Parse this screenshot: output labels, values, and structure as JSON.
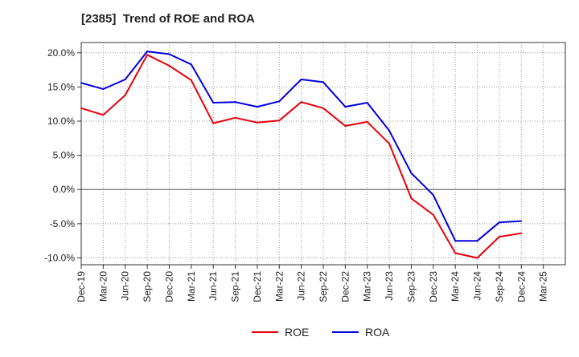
{
  "chart_data": {
    "type": "line",
    "title": "[2385]  Trend of ROE and ROA",
    "xlabel": "",
    "ylabel": "",
    "categories": [
      "Dec-19",
      "Mar-20",
      "Jun-20",
      "Sep-20",
      "Dec-20",
      "Mar-21",
      "Jun-21",
      "Sep-21",
      "Dec-21",
      "Mar-22",
      "Jun-22",
      "Sep-22",
      "Dec-22",
      "Mar-23",
      "Jun-23",
      "Sep-23",
      "Dec-23",
      "Mar-24",
      "Jun-24",
      "Sep-24",
      "Dec-24",
      "Mar-25"
    ],
    "ylim": [
      -11,
      21.5
    ],
    "yticks": [
      -10,
      -5,
      0,
      5,
      10,
      15,
      20
    ],
    "ytick_labels": [
      "-10.0%",
      "-5.0%",
      "0.0%",
      "5.0%",
      "10.0%",
      "15.0%",
      "20.0%"
    ],
    "grid": true,
    "legend_position": "bottom",
    "series": [
      {
        "name": "ROE",
        "color": "#e8000b",
        "values": [
          11.9,
          10.9,
          13.8,
          19.7,
          18.1,
          16.0,
          9.7,
          10.5,
          9.8,
          10.1,
          12.8,
          11.9,
          9.3,
          9.9,
          6.7,
          -1.3,
          -3.7,
          -9.3,
          -10.0,
          -6.9,
          -6.4,
          null
        ]
      },
      {
        "name": "ROA",
        "color": "#0000e0",
        "values": [
          15.6,
          14.7,
          16.1,
          20.2,
          19.8,
          18.3,
          12.7,
          12.8,
          12.1,
          12.9,
          16.1,
          15.7,
          12.1,
          12.7,
          8.6,
          2.4,
          -0.8,
          -7.5,
          -7.5,
          -4.8,
          -4.6,
          null
        ]
      }
    ]
  }
}
